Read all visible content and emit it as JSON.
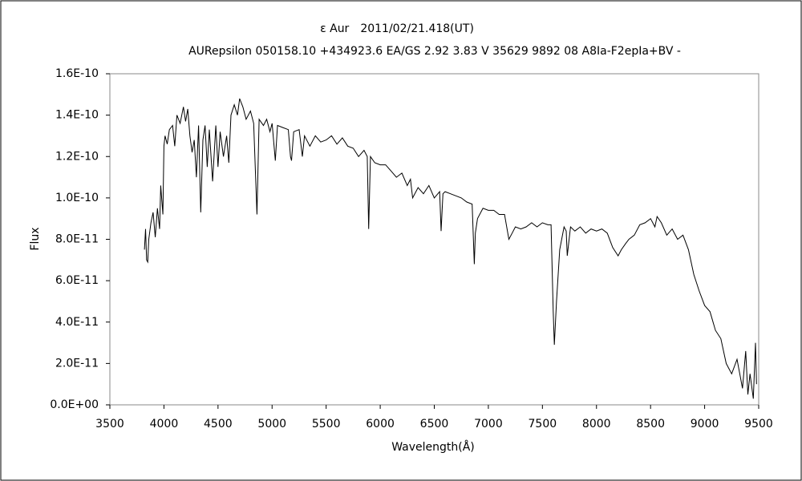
{
  "chart_data": {
    "type": "line",
    "title": "ε Aur　2011/02/21.418(UT)",
    "subtitle": "AURepsilon 050158.10 +434923.6 EA/GS 2.92 3.83 V 35629 9892 08 A8Ia-F2epIa+BV -",
    "x_label": "Wavelength(Å)",
    "y_label": "Flux",
    "xlim": [
      3500,
      9500
    ],
    "xticks": [
      3500,
      4000,
      4500,
      5000,
      5500,
      6000,
      6500,
      7000,
      7500,
      8000,
      8500,
      9000,
      9500
    ],
    "ylim": [
      0,
      1.6e-10
    ],
    "yticks": [
      {
        "value": 0,
        "label": "0.0E+00"
      },
      {
        "value": 2e-11,
        "label": "2.0E-11"
      },
      {
        "value": 4e-11,
        "label": "4.0E-11"
      },
      {
        "value": 6e-11,
        "label": "6.0E-11"
      },
      {
        "value": 8e-11,
        "label": "8.0E-11"
      },
      {
        "value": 1e-10,
        "label": "1.0E-10"
      },
      {
        "value": 1.2e-10,
        "label": "1.2E-10"
      },
      {
        "value": 1.4e-10,
        "label": "1.4E-10"
      },
      {
        "value": 1.6e-10,
        "label": "1.6E-10"
      }
    ],
    "color": "#000000",
    "x": [
      3820,
      3830,
      3840,
      3850,
      3860,
      3880,
      3900,
      3920,
      3940,
      3960,
      3970,
      3990,
      4000,
      4010,
      4030,
      4050,
      4080,
      4100,
      4120,
      4150,
      4180,
      4200,
      4220,
      4240,
      4260,
      4280,
      4300,
      4320,
      4340,
      4360,
      4380,
      4400,
      4420,
      4450,
      4480,
      4500,
      4520,
      4550,
      4580,
      4600,
      4620,
      4650,
      4680,
      4700,
      4730,
      4760,
      4800,
      4830,
      4860,
      4880,
      4920,
      4950,
      4980,
      5000,
      5030,
      5050,
      5100,
      5150,
      5170,
      5180,
      5200,
      5250,
      5280,
      5300,
      5350,
      5400,
      5450,
      5500,
      5550,
      5600,
      5650,
      5700,
      5750,
      5800,
      5850,
      5880,
      5893,
      5910,
      5950,
      6000,
      6050,
      6100,
      6150,
      6200,
      6250,
      6280,
      6300,
      6350,
      6400,
      6450,
      6500,
      6550,
      6563,
      6580,
      6600,
      6650,
      6700,
      6750,
      6800,
      6850,
      6870,
      6880,
      6900,
      6950,
      7000,
      7050,
      7100,
      7150,
      7190,
      7220,
      7250,
      7300,
      7350,
      7400,
      7450,
      7500,
      7550,
      7580,
      7600,
      7610,
      7630,
      7660,
      7700,
      7720,
      7730,
      7760,
      7800,
      7850,
      7900,
      7950,
      8000,
      8050,
      8100,
      8150,
      8200,
      8230,
      8270,
      8300,
      8350,
      8400,
      8450,
      8500,
      8540,
      8560,
      8600,
      8650,
      8700,
      8750,
      8800,
      8850,
      8900,
      8950,
      9000,
      9050,
      9100,
      9150,
      9200,
      9250,
      9300,
      9350,
      9380,
      9400,
      9420,
      9450,
      9470,
      9480
    ],
    "values": [
      7.5e-11,
      8.5e-11,
      7e-11,
      6.9e-11,
      8e-11,
      8.8e-11,
      9.3e-11,
      8.1e-11,
      9.5e-11,
      8.5e-11,
      1.06e-10,
      9.2e-11,
      1.25e-10,
      1.3e-10,
      1.26e-10,
      1.33e-10,
      1.35e-10,
      1.25e-10,
      1.4e-10,
      1.36e-10,
      1.44e-10,
      1.37e-10,
      1.43e-10,
      1.3e-10,
      1.22e-10,
      1.28e-10,
      1.1e-10,
      1.35e-10,
      9.3e-11,
      1.28e-10,
      1.35e-10,
      1.15e-10,
      1.33e-10,
      1.08e-10,
      1.35e-10,
      1.15e-10,
      1.32e-10,
      1.2e-10,
      1.3e-10,
      1.17e-10,
      1.4e-10,
      1.45e-10,
      1.4e-10,
      1.48e-10,
      1.44e-10,
      1.38e-10,
      1.42e-10,
      1.36e-10,
      9.2e-11,
      1.38e-10,
      1.35e-10,
      1.38e-10,
      1.32e-10,
      1.36e-10,
      1.18e-10,
      1.35e-10,
      1.34e-10,
      1.33e-10,
      1.2e-10,
      1.18e-10,
      1.32e-10,
      1.33e-10,
      1.2e-10,
      1.3e-10,
      1.25e-10,
      1.3e-10,
      1.27e-10,
      1.28e-10,
      1.3e-10,
      1.26e-10,
      1.29e-10,
      1.25e-10,
      1.24e-10,
      1.2e-10,
      1.23e-10,
      1.2e-10,
      8.5e-11,
      1.2e-10,
      1.17e-10,
      1.16e-10,
      1.16e-10,
      1.13e-10,
      1.1e-10,
      1.12e-10,
      1.06e-10,
      1.09e-10,
      1e-10,
      1.05e-10,
      1.02e-10,
      1.06e-10,
      1e-10,
      1.03e-10,
      8.4e-11,
      1.02e-10,
      1.03e-10,
      1.02e-10,
      1.01e-10,
      1e-10,
      9.8e-11,
      9.7e-11,
      6.8e-11,
      8.3e-11,
      9e-11,
      9.5e-11,
      9.4e-11,
      9.4e-11,
      9.2e-11,
      9.2e-11,
      8e-11,
      8.3e-11,
      8.6e-11,
      8.5e-11,
      8.6e-11,
      8.8e-11,
      8.6e-11,
      8.8e-11,
      8.7e-11,
      8.7e-11,
      4.5e-11,
      2.9e-11,
      5e-11,
      7.5e-11,
      8.6e-11,
      8.4e-11,
      7.2e-11,
      8.6e-11,
      8.4e-11,
      8.6e-11,
      8.3e-11,
      8.5e-11,
      8.4e-11,
      8.5e-11,
      8.3e-11,
      7.6e-11,
      7.2e-11,
      7.5e-11,
      7.8e-11,
      8e-11,
      8.2e-11,
      8.7e-11,
      8.8e-11,
      9e-11,
      8.6e-11,
      9.1e-11,
      8.8e-11,
      8.2e-11,
      8.5e-11,
      8e-11,
      8.2e-11,
      7.5e-11,
      6.3e-11,
      5.5e-11,
      4.8e-11,
      4.5e-11,
      3.6e-11,
      3.2e-11,
      2e-11,
      1.5e-11,
      2.2e-11,
      8e-12,
      2.6e-11,
      5e-12,
      1.5e-11,
      3e-12,
      3e-11,
      1e-11
    ]
  }
}
